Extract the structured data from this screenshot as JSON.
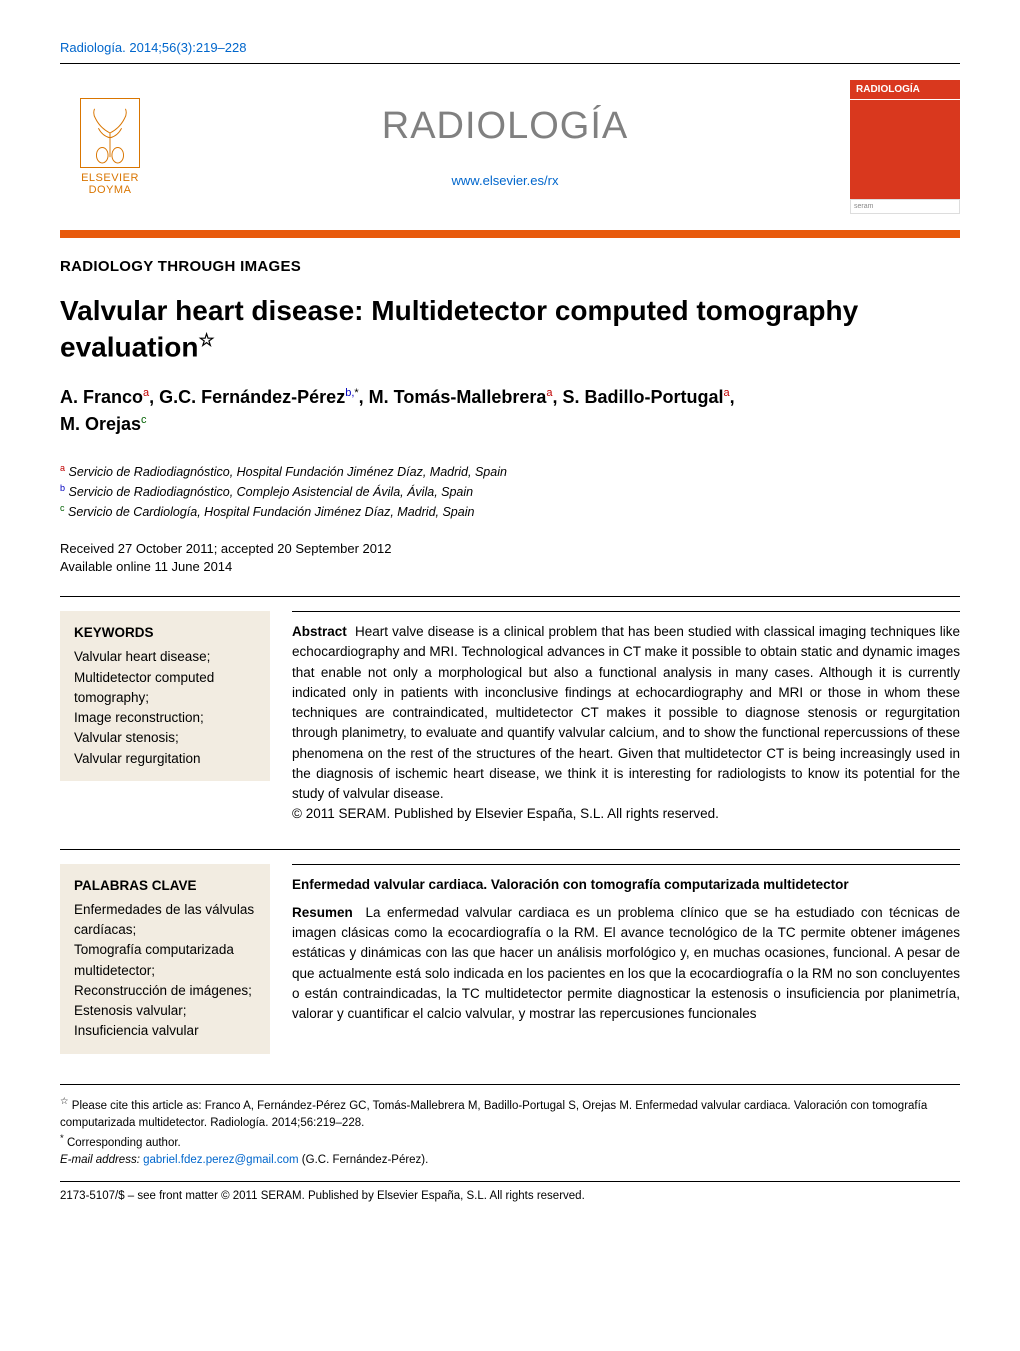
{
  "citation_top": "Radiología. 2014;56(3):219–228",
  "publisher": {
    "name_line1": "ELSEVIER",
    "name_line2": "DOYMA",
    "tree_color": "#d97500"
  },
  "journal": {
    "title_display": "RADIOLOGÍA",
    "title_color": "#808080",
    "url": "www.elsevier.es/rx",
    "cover_label": "RADIOLOGÍA",
    "cover_bg": "#d9381e",
    "cover_bottom_text": "seram"
  },
  "orange_bar_color": "#e85a0c",
  "section_label": "RADIOLOGY THROUGH IMAGES",
  "article": {
    "title": "Valvular heart disease: Multidetector computed tomography evaluation",
    "star": "☆",
    "authors_line1_html": "A. Franco<sup class='sup-a'>a</sup>, G.C. Fernández-Pérez<sup class='sup-b'>b,</sup><sup>*</sup>, M. Tomás-Mallebrera<sup class='sup-a'>a</sup>, S. Badillo-Portugal<sup class='sup-a'>a</sup>,",
    "authors_line2_html": "M. Orejas<sup class='sup-c'>c</sup>"
  },
  "affiliations": [
    {
      "sup": "a",
      "cls": "sup-a",
      "text": "Servicio de Radiodiagnóstico, Hospital Fundación Jiménez Díaz, Madrid, Spain"
    },
    {
      "sup": "b",
      "cls": "sup-b",
      "text": "Servicio de Radiodiagnóstico, Complejo Asistencial de Ávila, Ávila, Spain"
    },
    {
      "sup": "c",
      "cls": "sup-c",
      "text": "Servicio de Cardiología, Hospital Fundación Jiménez Díaz, Madrid, Spain"
    }
  ],
  "dates": {
    "line1": "Received 27 October 2011; accepted 20 September 2012",
    "line2": "Available online 11 June 2014"
  },
  "keywords_en": {
    "head": "KEYWORDS",
    "items": "Valvular heart disease;\nMultidetector computed tomography;\nImage reconstruction;\nValvular stenosis;\nValvular regurgitation",
    "box_bg": "#f2ece1"
  },
  "abstract_en": {
    "lead": "Abstract",
    "body": "Heart valve disease is a clinical problem that has been studied with classical imaging techniques like echocardiography and MRI. Technological advances in CT make it possible to obtain static and dynamic images that enable not only a morphological but also a functional analysis in many cases. Although it is currently indicated only in patients with inconclusive findings at echocardiography and MRI or those in whom these techniques are contraindicated, multidetector CT makes it possible to diagnose stenosis or regurgitation through planimetry, to evaluate and quantify valvular calcium, and to show the functional repercussions of these phenomena on the rest of the structures of the heart. Given that multidetector CT is being increasingly used in the diagnosis of ischemic heart disease, we think it is interesting for radiologists to know its potential for the study of valvular disease.",
    "copyright": "© 2011 SERAM. Published by Elsevier España, S.L. All rights reserved."
  },
  "keywords_es": {
    "head": "PALABRAS CLAVE",
    "items": "Enfermedades de las válvulas cardíacas;\nTomografía computarizada multidetector;\nReconstrucción de imágenes;\nEstenosis valvular;\nInsuficiencia valvular"
  },
  "abstract_es": {
    "title": "Enfermedad valvular cardiaca. Valoración con tomografía computarizada multidetector",
    "lead": "Resumen",
    "body": "La enfermedad valvular cardiaca es un problema clínico que se ha estudiado con técnicas de imagen clásicas como la ecocardiografía o la RM. El avance tecnológico de la TC permite obtener imágenes estáticas y dinámicas con las que hacer un análisis morfológico y, en muchas ocasiones, funcional. A pesar de que actualmente está solo indicada en los pacientes en los que la ecocardiografía o la RM no son concluyentes o están contraindicadas, la TC multidetector permite diagnosticar la estenosis o insuficiencia por planimetría, valorar y cuantificar el calcio valvular, y mostrar las repercusiones funcionales"
  },
  "footnotes": {
    "cite_note": "Please cite this article as: Franco A, Fernández-Pérez GC, Tomás-Mallebrera M, Badillo-Portugal S, Orejas M. Enfermedad valvular cardiaca. Valoración con tomografía computarizada multidetector. Radiología. 2014;56:219–228.",
    "corr": "Corresponding author.",
    "email_label": "E-mail address:",
    "email": "gabriel.fdez.perez@gmail.com",
    "email_paren": "(G.C. Fernández-Pérez)."
  },
  "bottom_line": "2173-5107/$ – see front matter © 2011 SERAM. Published by Elsevier España, S.L. All rights reserved."
}
